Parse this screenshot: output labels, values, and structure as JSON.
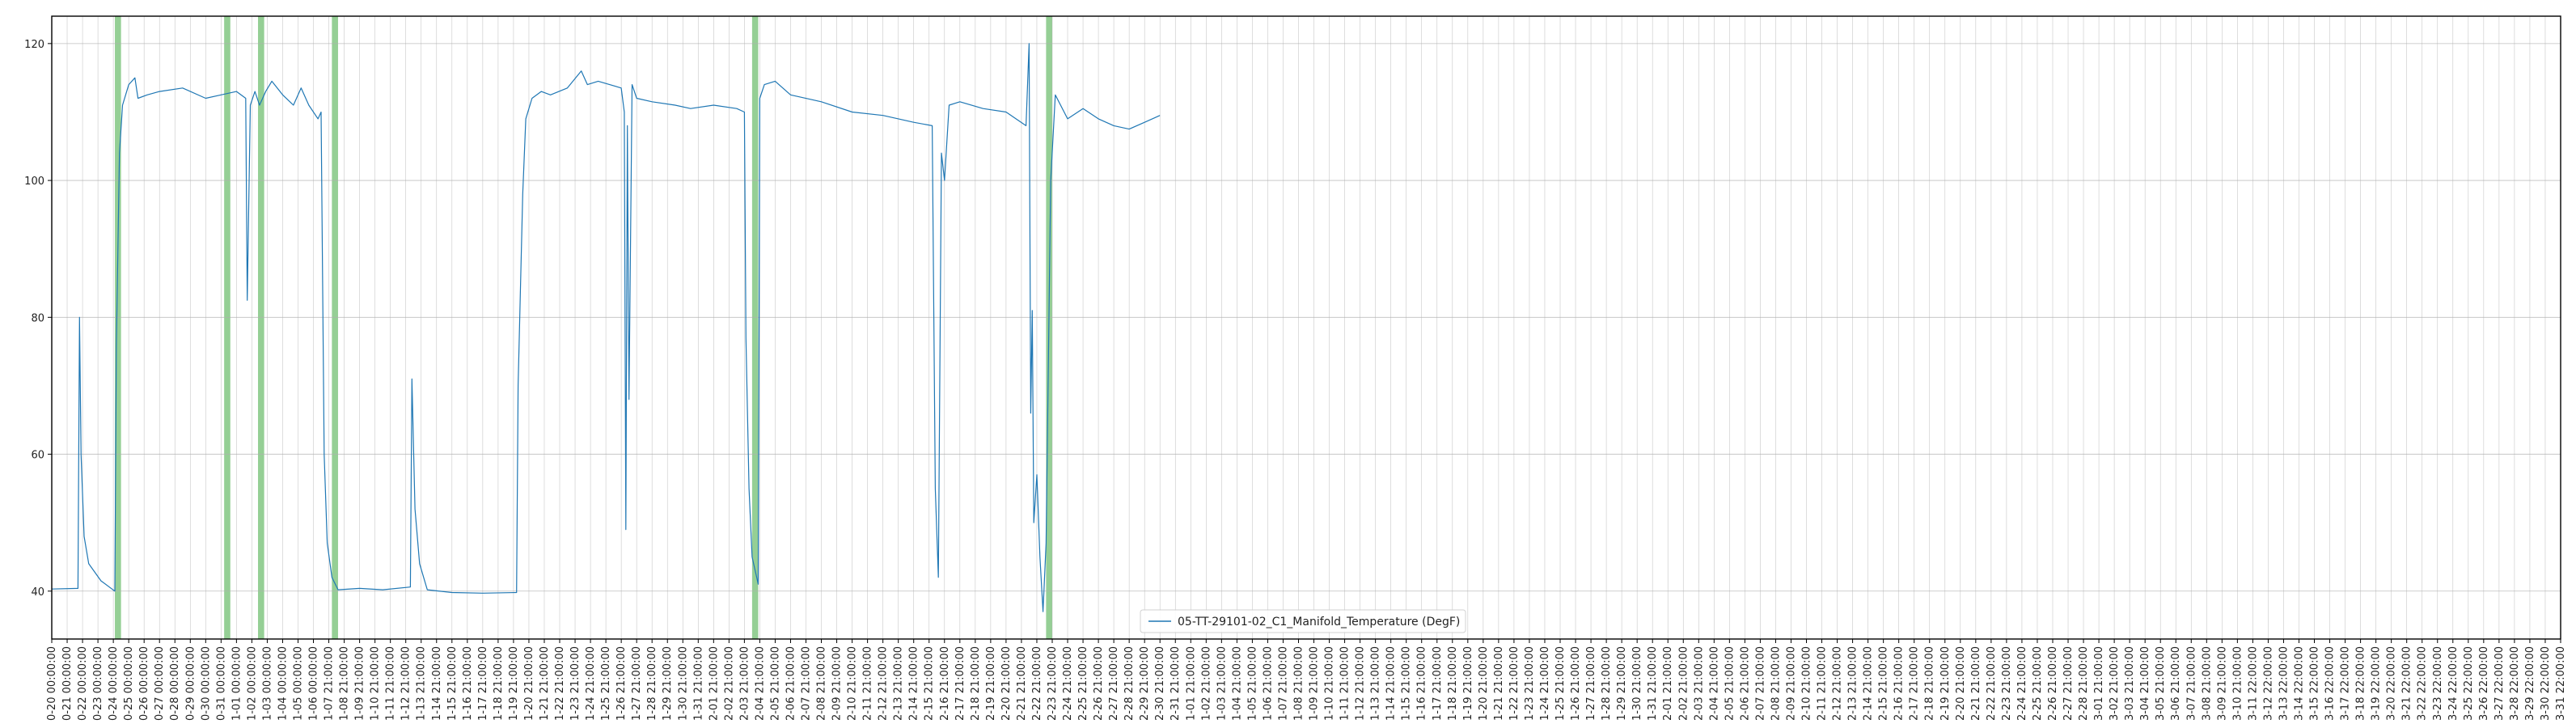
{
  "chart_data": {
    "type": "line",
    "title": "",
    "xlabel": "",
    "ylabel": "",
    "ylim": [
      33,
      124
    ],
    "yticks": [
      40,
      60,
      80,
      100,
      120
    ],
    "grid": true,
    "legend_position": "bottom-center",
    "series_color": "#1f77b4",
    "band_color": "#2ca02c",
    "x_tick_labels": [
      "0-20 00:00:00",
      "0-21 00:00:00",
      "0-22 00:00:00",
      "0-23 00:00:00",
      "0-24 00:00:00",
      "0-25 00:00:00",
      "0-26 00:00:00",
      "0-27 00:00:00",
      "0-28 00:00:00",
      "0-29 00:00:00",
      "0-30 00:00:00",
      "0-31 00:00:00",
      "1-01 00:00:00",
      "1-02 00:00:00",
      "1-03 00:00:00",
      "1-04 00:00:00",
      "1-05 00:00:00",
      "1-06 00:00:00",
      "1-07 21:00:00",
      "1-08 21:00:00",
      "1-09 21:00:00",
      "1-10 21:00:00",
      "1-11 21:00:00",
      "1-12 21:00:00",
      "1-13 21:00:00",
      "1-14 21:00:00",
      "1-15 21:00:00",
      "1-16 21:00:00",
      "1-17 21:00:00",
      "1-18 21:00:00",
      "1-19 21:00:00",
      "1-20 21:00:00",
      "1-21 21:00:00",
      "1-22 21:00:00",
      "1-23 21:00:00",
      "1-24 21:00:00",
      "1-25 21:00:00",
      "1-26 21:00:00",
      "1-27 21:00:00",
      "1-28 21:00:00",
      "1-29 21:00:00",
      "1-30 21:00:00",
      "1-31 21:00:00",
      "2-01 21:00:00",
      "2-02 21:00:00",
      "2-03 21:00:00",
      "2-04 21:00:00",
      "2-05 21:00:00",
      "2-06 21:00:00",
      "2-07 21:00:00",
      "2-08 21:00:00",
      "2-09 21:00:00",
      "2-10 21:00:00",
      "2-11 21:00:00",
      "2-12 21:00:00",
      "2-13 21:00:00",
      "2-14 21:00:00",
      "2-15 21:00:00",
      "2-16 21:00:00",
      "2-17 21:00:00",
      "2-18 21:00:00",
      "2-19 21:00:00",
      "2-20 21:00:00",
      "2-21 21:00:00",
      "2-22 21:00:00",
      "2-23 21:00:00",
      "2-24 21:00:00",
      "2-25 21:00:00",
      "2-26 21:00:00",
      "2-27 21:00:00",
      "2-28 21:00:00",
      "2-29 21:00:00",
      "2-30 21:00:00",
      "2-31 21:00:00",
      "1-01 21:00:00",
      "1-02 21:00:00",
      "1-03 21:00:00",
      "1-04 21:00:00",
      "1-05 21:00:00",
      "1-06 21:00:00",
      "1-07 21:00:00",
      "1-08 21:00:00",
      "1-09 21:00:00",
      "1-10 21:00:00",
      "1-11 21:00:00",
      "1-12 21:00:00",
      "1-13 21:00:00",
      "1-14 21:00:00",
      "1-15 21:00:00",
      "1-16 21:00:00",
      "1-17 21:00:00",
      "1-18 21:00:00",
      "1-19 21:00:00",
      "1-20 21:00:00",
      "1-21 21:00:00",
      "1-22 21:00:00",
      "1-23 21:00:00",
      "1-24 21:00:00",
      "1-25 21:00:00",
      "1-26 21:00:00",
      "1-27 21:00:00",
      "1-28 21:00:00",
      "1-29 21:00:00",
      "1-30 21:00:00",
      "1-31 21:00:00",
      "2-01 21:00:00",
      "2-02 21:00:00",
      "2-03 21:00:00",
      "2-04 21:00:00",
      "2-05 21:00:00",
      "2-06 21:00:00",
      "2-07 21:00:00",
      "2-08 21:00:00",
      "2-09 21:00:00",
      "2-10 21:00:00",
      "2-11 21:00:00",
      "2-12 21:00:00",
      "2-13 21:00:00",
      "2-14 21:00:00",
      "2-15 21:00:00",
      "2-16 21:00:00",
      "2-17 21:00:00",
      "2-18 21:00:00",
      "2-19 21:00:00",
      "2-20 21:00:00",
      "2-21 21:00:00",
      "2-22 21:00:00",
      "2-23 21:00:00",
      "2-24 21:00:00",
      "2-25 21:00:00",
      "2-26 21:00:00",
      "2-27 21:00:00",
      "2-28 21:00:00",
      "3-01 21:00:00",
      "3-02 21:00:00",
      "3-03 21:00:00",
      "3-04 21:00:00",
      "3-05 21:00:00",
      "3-06 21:00:00",
      "3-07 21:00:00",
      "3-08 21:00:00",
      "3-09 21:00:00",
      "3-10 21:00:00",
      "3-11 22:00:00",
      "3-12 22:00:00",
      "3-13 22:00:00",
      "3-14 22:00:00",
      "3-15 22:00:00",
      "3-16 22:00:00",
      "3-17 22:00:00",
      "3-18 22:00:00",
      "3-19 22:00:00",
      "3-20 22:00:00",
      "3-21 22:00:00",
      "3-22 22:00:00",
      "3-23 22:00:00",
      "3-24 22:00:00",
      "3-25 22:00:00",
      "3-26 22:00:00",
      "3-27 22:00:00",
      "3-28 22:00:00",
      "3-29 22:00:00",
      "3-30 22:00:00",
      "3-31 22:00:00"
    ],
    "highlight_bands": [
      [
        4.1,
        4.5
      ],
      [
        11.2,
        11.6
      ],
      [
        13.4,
        13.8
      ],
      [
        18.2,
        18.6
      ],
      [
        45.5,
        45.9
      ],
      [
        64.6,
        65.0
      ]
    ],
    "series": [
      {
        "name": "05-TT-29101-02_C1_Manifold_Temperature (DegF)",
        "points": [
          [
            0,
            40.3
          ],
          [
            1.7,
            40.4
          ],
          [
            1.8,
            80.0
          ],
          [
            1.9,
            60.0
          ],
          [
            2.1,
            48.0
          ],
          [
            2.4,
            44.0
          ],
          [
            3.2,
            41.5
          ],
          [
            4.1,
            40.0
          ],
          [
            4.2,
            76.0
          ],
          [
            4.4,
            104.0
          ],
          [
            4.6,
            111.0
          ],
          [
            5.0,
            114.0
          ],
          [
            5.4,
            115.0
          ],
          [
            5.6,
            112.0
          ],
          [
            6.2,
            112.5
          ],
          [
            7.0,
            113.0
          ],
          [
            8.5,
            113.5
          ],
          [
            10.0,
            112.0
          ],
          [
            11.0,
            112.5
          ],
          [
            12.0,
            113.0
          ],
          [
            12.6,
            112.0
          ],
          [
            12.7,
            82.5
          ],
          [
            12.9,
            111.0
          ],
          [
            13.2,
            113.0
          ],
          [
            13.5,
            111.0
          ],
          [
            13.9,
            113.0
          ],
          [
            14.3,
            114.5
          ],
          [
            15.0,
            112.5
          ],
          [
            15.7,
            111.0
          ],
          [
            16.2,
            113.5
          ],
          [
            16.7,
            111.0
          ],
          [
            17.3,
            109.0
          ],
          [
            17.5,
            110.0
          ],
          [
            17.6,
            85.0
          ],
          [
            17.7,
            60.0
          ],
          [
            17.9,
            47.0
          ],
          [
            18.2,
            42.0
          ],
          [
            18.6,
            40.2
          ],
          [
            20.0,
            40.4
          ],
          [
            21.5,
            40.2
          ],
          [
            23.3,
            40.6
          ],
          [
            23.4,
            71.0
          ],
          [
            23.6,
            52.0
          ],
          [
            23.9,
            44.0
          ],
          [
            24.4,
            40.2
          ],
          [
            26.0,
            39.8
          ],
          [
            28.0,
            39.7
          ],
          [
            30.2,
            39.8
          ],
          [
            30.3,
            70.0
          ],
          [
            30.6,
            98.0
          ],
          [
            30.8,
            109.0
          ],
          [
            31.2,
            112.0
          ],
          [
            31.8,
            113.0
          ],
          [
            32.4,
            112.5
          ],
          [
            33.5,
            113.5
          ],
          [
            34.4,
            116.0
          ],
          [
            34.8,
            114.0
          ],
          [
            35.5,
            114.5
          ],
          [
            37.0,
            113.5
          ],
          [
            37.2,
            110.0
          ],
          [
            37.3,
            49.0
          ],
          [
            37.4,
            108.0
          ],
          [
            37.5,
            68.0
          ],
          [
            37.7,
            114.0
          ],
          [
            38.0,
            112.0
          ],
          [
            39.0,
            111.5
          ],
          [
            40.5,
            111.0
          ],
          [
            41.5,
            110.5
          ],
          [
            43.0,
            111.0
          ],
          [
            44.5,
            110.5
          ],
          [
            45.0,
            110.0
          ],
          [
            45.1,
            77.0
          ],
          [
            45.3,
            55.0
          ],
          [
            45.5,
            45.0
          ],
          [
            45.9,
            41.0
          ],
          [
            46.0,
            112.0
          ],
          [
            46.3,
            114.0
          ],
          [
            47.0,
            114.5
          ],
          [
            48.0,
            112.5
          ],
          [
            50.0,
            111.5
          ],
          [
            52.0,
            110.0
          ],
          [
            54.0,
            109.5
          ],
          [
            56.0,
            108.5
          ],
          [
            57.2,
            108.0
          ],
          [
            57.4,
            55.0
          ],
          [
            57.6,
            42.0
          ],
          [
            57.8,
            104.0
          ],
          [
            58.0,
            100.0
          ],
          [
            58.3,
            111.0
          ],
          [
            59.0,
            111.5
          ],
          [
            60.5,
            110.5
          ],
          [
            62.0,
            110.0
          ],
          [
            63.3,
            108.0
          ],
          [
            63.5,
            120.0
          ],
          [
            63.6,
            66.0
          ],
          [
            63.7,
            81.0
          ],
          [
            63.8,
            50.0
          ],
          [
            64.0,
            57.0
          ],
          [
            64.2,
            45.0
          ],
          [
            64.4,
            37.0
          ],
          [
            64.6,
            47.0
          ],
          [
            64.9,
            100.0
          ],
          [
            65.2,
            112.5
          ],
          [
            66.0,
            109.0
          ],
          [
            67.0,
            110.5
          ],
          [
            68.0,
            109.0
          ],
          [
            69.0,
            108.0
          ],
          [
            70.0,
            107.5
          ],
          [
            71.0,
            108.5
          ],
          [
            72.0,
            109.5
          ]
        ]
      }
    ]
  },
  "legend": {
    "label": "05-TT-29101-02_C1_Manifold_Temperature (DegF)"
  }
}
